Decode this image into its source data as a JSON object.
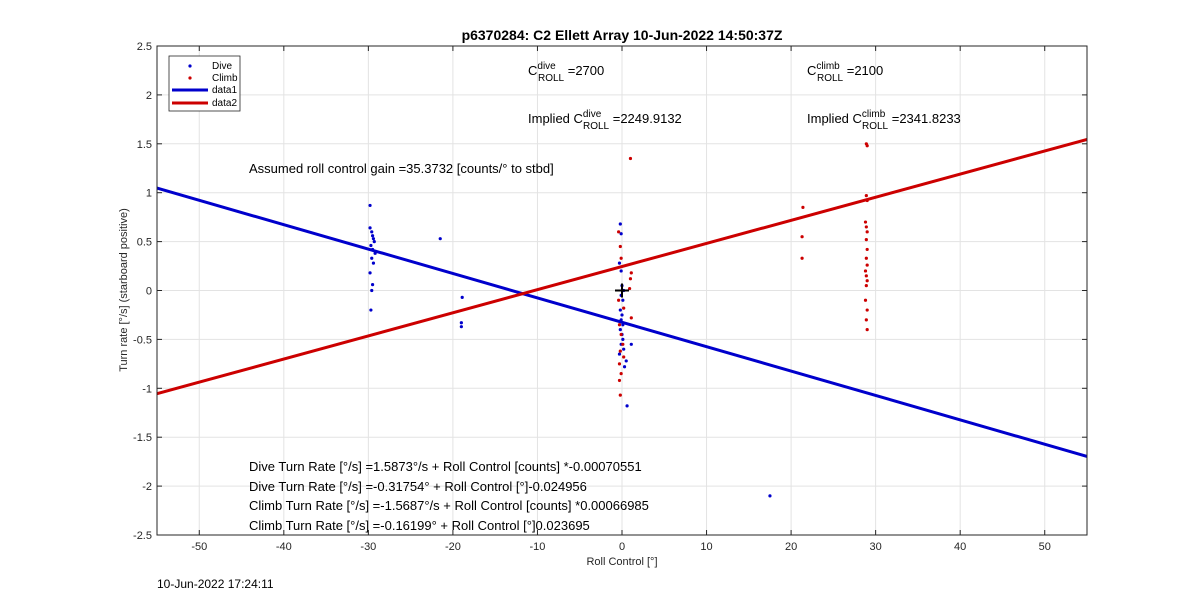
{
  "chart_data": {
    "type": "scatter",
    "title": "p6370284: C2 Ellett Array 10-Jun-2022 14:50:37Z",
    "xlabel": "Roll Control [°]",
    "ylabel": "Turn rate [°/s] (starboard positive)",
    "xlim": [
      -55,
      55
    ],
    "ylim": [
      -2.5,
      2.5
    ],
    "xticks": [
      -50,
      -40,
      -30,
      -20,
      -10,
      0,
      10,
      20,
      30,
      40,
      50
    ],
    "yticks": [
      -2.5,
      -2,
      -1.5,
      -1,
      -0.5,
      0,
      0.5,
      1,
      1.5,
      2,
      2.5
    ],
    "xtick_labels": [
      "-50",
      "-40",
      "-30",
      "-20",
      "-10",
      "0",
      "10",
      "20",
      "30",
      "40",
      "50"
    ],
    "ytick_labels": [
      "-2.5",
      "-2",
      "-1.5",
      "-1",
      "-0.5",
      "0",
      "0.5",
      "1",
      "1.5",
      "2",
      "2.5"
    ],
    "grid": true,
    "legend_position": "top-left",
    "series": [
      {
        "name": "Dive",
        "kind": "points",
        "color": "#0000cc",
        "points": [
          [
            -29.8,
            0.87
          ],
          [
            -29.8,
            0.64
          ],
          [
            -29.6,
            0.6
          ],
          [
            -29.5,
            0.56
          ],
          [
            -29.4,
            0.53
          ],
          [
            -29.3,
            0.5
          ],
          [
            -29.7,
            0.46
          ],
          [
            -29.5,
            0.42
          ],
          [
            -29.2,
            0.38
          ],
          [
            -29.6,
            0.33
          ],
          [
            -29.4,
            0.28
          ],
          [
            -29.8,
            0.18
          ],
          [
            -29.5,
            0.06
          ],
          [
            -29.6,
            0.0
          ],
          [
            -29.7,
            -0.2
          ],
          [
            -21.5,
            0.53
          ],
          [
            -18.9,
            -0.07
          ],
          [
            -19.0,
            -0.33
          ],
          [
            -19.0,
            -0.37
          ],
          [
            -0.2,
            0.68
          ],
          [
            -0.1,
            0.58
          ],
          [
            -0.3,
            0.28
          ],
          [
            -0.1,
            0.2
          ],
          [
            0.0,
            0.05
          ],
          [
            0.2,
            0.0
          ],
          [
            -0.1,
            -0.05
          ],
          [
            0.1,
            -0.1
          ],
          [
            -0.2,
            -0.2
          ],
          [
            0.0,
            -0.25
          ],
          [
            -0.1,
            -0.3
          ],
          [
            0.1,
            -0.35
          ],
          [
            -0.2,
            -0.4
          ],
          [
            0.0,
            -0.45
          ],
          [
            0.1,
            -0.5
          ],
          [
            -0.1,
            -0.55
          ],
          [
            0.2,
            -0.6
          ],
          [
            -0.3,
            -0.65
          ],
          [
            0.5,
            -0.72
          ],
          [
            0.3,
            -0.78
          ],
          [
            1.1,
            -0.55
          ],
          [
            0.6,
            -1.18
          ],
          [
            17.5,
            -2.1
          ]
        ]
      },
      {
        "name": "Climb",
        "kind": "points",
        "color": "#cc0000",
        "points": [
          [
            1.0,
            1.35
          ],
          [
            -0.4,
            0.6
          ],
          [
            -0.2,
            0.45
          ],
          [
            -0.1,
            0.33
          ],
          [
            1.1,
            0.18
          ],
          [
            1.0,
            0.12
          ],
          [
            0.9,
            0.02
          ],
          [
            -0.4,
            -0.1
          ],
          [
            0.2,
            -0.18
          ],
          [
            1.1,
            -0.28
          ],
          [
            -0.3,
            -0.35
          ],
          [
            -0.1,
            -0.45
          ],
          [
            0.1,
            -0.55
          ],
          [
            -0.2,
            -0.62
          ],
          [
            0.2,
            -0.68
          ],
          [
            -0.3,
            -0.75
          ],
          [
            -0.1,
            -0.85
          ],
          [
            -0.3,
            -0.92
          ],
          [
            -0.2,
            -1.07
          ],
          [
            21.4,
            0.85
          ],
          [
            21.3,
            0.55
          ],
          [
            21.3,
            0.33
          ],
          [
            28.9,
            1.5
          ],
          [
            29.0,
            1.48
          ],
          [
            28.9,
            0.97
          ],
          [
            29.0,
            0.92
          ],
          [
            28.8,
            0.7
          ],
          [
            28.9,
            0.65
          ],
          [
            29.0,
            0.6
          ],
          [
            28.9,
            0.52
          ],
          [
            29.0,
            0.42
          ],
          [
            28.9,
            0.33
          ],
          [
            29.0,
            0.26
          ],
          [
            28.8,
            0.2
          ],
          [
            28.9,
            0.15
          ],
          [
            29.0,
            0.1
          ],
          [
            28.9,
            0.05
          ],
          [
            28.8,
            -0.1
          ],
          [
            29.0,
            -0.2
          ],
          [
            28.9,
            -0.3
          ],
          [
            29.0,
            -0.4
          ]
        ]
      },
      {
        "name": "data1",
        "kind": "line",
        "color": "#0000cc",
        "points": [
          [
            -55,
            1.047
          ],
          [
            55,
            -1.697
          ]
        ]
      },
      {
        "name": "data2",
        "kind": "line",
        "color": "#cc0000",
        "points": [
          [
            -55,
            -1.055
          ],
          [
            55,
            1.545
          ]
        ]
      }
    ],
    "marker": {
      "x": 0,
      "y": 0,
      "symbol": "+"
    },
    "annotations": {
      "c_dive": {
        "main": "C",
        "sup": "dive",
        "sub": "ROLL",
        "suffix": " =2700"
      },
      "c_climb": {
        "main": "C",
        "sup": "climb",
        "sub": "ROLL",
        "suffix": " =2100"
      },
      "implied_dive": {
        "prefix": "Implied ",
        "main": "C",
        "sup": "dive",
        "sub": "ROLL",
        "suffix": " =2249.9132"
      },
      "implied_climb": {
        "prefix": "Implied ",
        "main": "C",
        "sup": "climb",
        "sub": "ROLL",
        "suffix": " =2341.8233"
      },
      "gain": "Assumed roll control gain =35.3732 [counts/° to stbd]",
      "fits": [
        "Dive Turn Rate [°/s] =1.5873°/s + Roll Control [counts] *-0.00070551",
        "Dive Turn Rate [°/s] =-0.31754° + Roll Control [°]-0.024956",
        "Climb Turn Rate [°/s] =-1.5687°/s + Roll Control [counts] *0.00066985",
        "Climb Turn Rate [°/s] =-0.16199° + Roll Control [°]0.023695"
      ]
    },
    "timestamp": "10-Jun-2022 17:24:11"
  }
}
